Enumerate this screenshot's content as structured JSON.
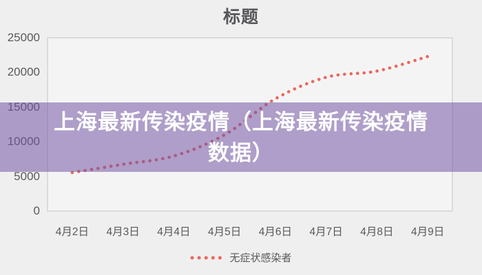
{
  "chart": {
    "title": "标题",
    "legend_label": "无症状感染者"
  },
  "banner": {
    "line1": "上海最新传染疫情（上海最新传染疫情",
    "line2": "数据）",
    "overlay_color": "#7052a3",
    "overlay_opacity": 0.53,
    "text_color": "#ffffff"
  },
  "chart_data": {
    "type": "line",
    "line_style": "dotted",
    "title": "标题",
    "categories": [
      "4月2日",
      "4月3日",
      "4月4日",
      "4月5日",
      "4月6日",
      "4月7日",
      "4月8日",
      "4月9日"
    ],
    "series": [
      {
        "name": "无症状感染者",
        "values": [
          5650,
          6850,
          8050,
          11100,
          16300,
          19400,
          20300,
          22400
        ]
      }
    ],
    "ylim": [
      0,
      25000
    ],
    "yticks": [
      0,
      5000,
      10000,
      15000,
      20000,
      25000
    ],
    "ytick_labels": [
      "0",
      "5000",
      "10000",
      "15000",
      "20000",
      "25000"
    ],
    "grid": false,
    "legend_position": "bottom",
    "line_color": "#e9695e",
    "axis_text_color": "#59595b",
    "plot_bg": "#f5f4f5",
    "page_bg": "#f0eff0"
  }
}
